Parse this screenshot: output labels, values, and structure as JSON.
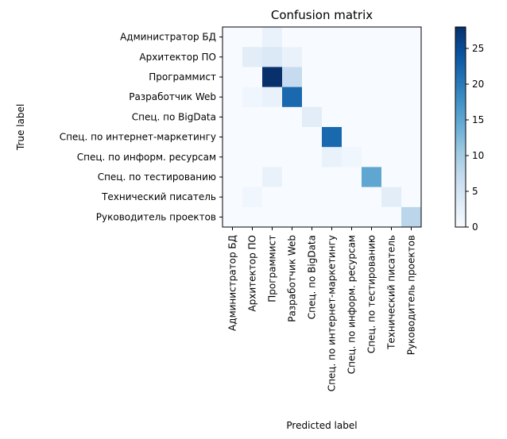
{
  "chart_data": {
    "type": "heatmap",
    "title": "Confusion matrix",
    "xlabel": "Predicted label",
    "ylabel": "True label",
    "row_labels": [
      "Администратор БД",
      "Архитектор ПО",
      "Программист",
      "Разработчик Web",
      "Спец. по BigData",
      "Спец. по интернет-маркетингу",
      "Спец. по информ. ресурсам",
      "Спец. по тестированию",
      "Технический писатель",
      "Руководитель проектов"
    ],
    "col_labels": [
      "Администратор БД",
      "Архитектор ПО",
      "Программист",
      "Разработчик Web",
      "Спец. по BigData",
      "Спец. по интернет-маркетингу",
      "Спец. по информ. ресурсам",
      "Спец. по тестированию",
      "Технический писатель",
      "Руководитель проектов"
    ],
    "matrix": [
      [
        0,
        0,
        2,
        0,
        0,
        0,
        0,
        0,
        0,
        0
      ],
      [
        0,
        3,
        4,
        2,
        0,
        0,
        0,
        0,
        0,
        0
      ],
      [
        0,
        0,
        28,
        7,
        0,
        0,
        0,
        0,
        0,
        0
      ],
      [
        0,
        1,
        2,
        22,
        0,
        0,
        0,
        0,
        0,
        0
      ],
      [
        0,
        0,
        0,
        0,
        3,
        0,
        0,
        0,
        0,
        0
      ],
      [
        0,
        0,
        0,
        0,
        0,
        22,
        0,
        0,
        0,
        0
      ],
      [
        0,
        0,
        0,
        0,
        0,
        2,
        1,
        0,
        0,
        0
      ],
      [
        0,
        0,
        2,
        0,
        0,
        0,
        0,
        15,
        0,
        0
      ],
      [
        0,
        1,
        0,
        0,
        0,
        0,
        0,
        0,
        3,
        0
      ],
      [
        0,
        0,
        0,
        0,
        0,
        0,
        0,
        0,
        0,
        8
      ]
    ],
    "colorscale": "Blues",
    "vmin": 0,
    "vmax": 28,
    "colorbar_ticks": [
      "0",
      "5",
      "10",
      "15",
      "20",
      "25"
    ]
  }
}
